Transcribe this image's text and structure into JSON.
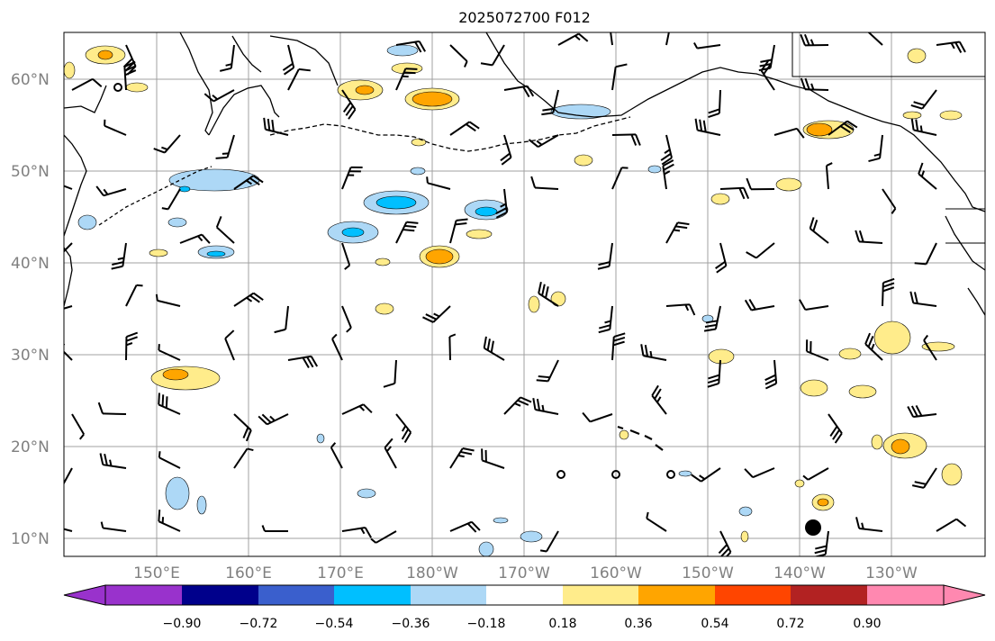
{
  "title": "2025072700 F012",
  "map": {
    "lat_labels": [
      "60°N",
      "50°N",
      "40°N",
      "30°N",
      "20°N",
      "10°N"
    ],
    "lon_labels": [
      "150°E",
      "160°E",
      "170°E",
      "180°W",
      "170°W",
      "160°W",
      "150°W",
      "140°W",
      "130°W"
    ]
  },
  "colorbar": {
    "tick_labels": [
      "−0.90",
      "−0.72",
      "−0.54",
      "−0.36",
      "−0.18",
      "0.18",
      "0.36",
      "0.54",
      "0.72",
      "0.90"
    ],
    "colors": [
      "#9932cc",
      "#00008b",
      "#3a5fcd",
      "#00bfff",
      "#add8f6",
      "#ffffff",
      "#ffec8b",
      "#ffa500",
      "#ff4500",
      "#b22222",
      "#ff88b0"
    ]
  },
  "palette": {
    "light_yellow": "#ffec8b",
    "orange": "#ffa500",
    "red_orange": "#ff4500",
    "light_blue": "#add8f6",
    "deep_sky_blue": "#00bfff"
  }
}
